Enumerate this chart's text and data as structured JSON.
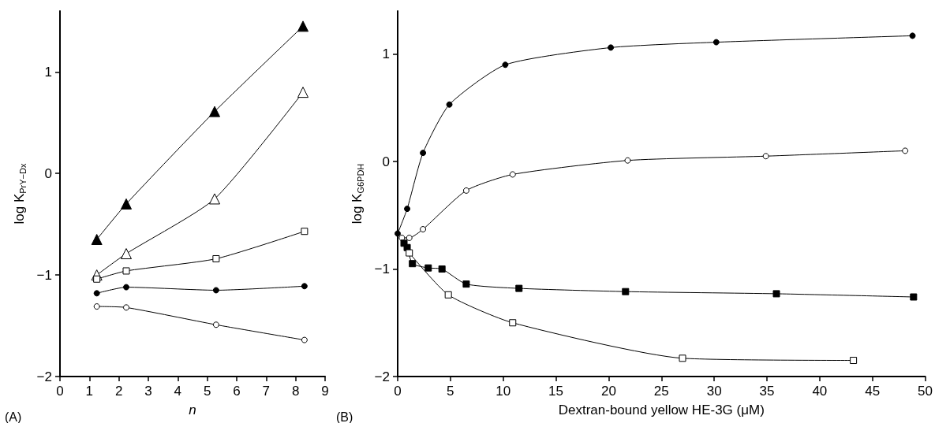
{
  "chart_data": [
    {
      "type": "line",
      "xlabel": "n",
      "ylabel": "log K$_{PrY−Dx}$",
      "annotations": [
        "(A)"
      ],
      "xlim": [
        0,
        9
      ],
      "xticks": [
        0,
        1,
        2,
        3,
        4,
        5,
        6,
        7,
        8,
        9
      ],
      "ylim": [
        -2,
        1.6
      ],
      "yticks": [
        -2,
        -1,
        0,
        1
      ],
      "line_style": "solid",
      "series": [
        {
          "color": "#000000",
          "marker": "triangle",
          "x": [
            1.25,
            2.25,
            5.25,
            8.25
          ],
          "values": [
            -0.65,
            -0.3,
            0.61,
            1.45
          ]
        },
        {
          "color": "#ffffff",
          "marker": "triangle",
          "x": [
            1.25,
            2.25,
            5.25,
            8.25
          ],
          "values": [
            -1.0,
            -0.79,
            -0.25,
            0.8
          ]
        },
        {
          "color": "#ffffff",
          "marker": "square",
          "x": [
            1.25,
            2.25,
            5.3,
            8.3
          ],
          "values": [
            -1.04,
            -0.96,
            -0.84,
            -0.57
          ]
        },
        {
          "color": "#000000",
          "marker": "circle",
          "x": [
            1.25,
            2.25,
            5.3,
            8.3
          ],
          "values": [
            -1.18,
            -1.12,
            -1.15,
            -1.11
          ]
        },
        {
          "color": "#ffffff",
          "marker": "circle",
          "x": [
            1.25,
            2.25,
            5.3,
            8.3
          ],
          "values": [
            -1.31,
            -1.32,
            -1.49,
            -1.64
          ]
        }
      ]
    },
    {
      "type": "line",
      "xlabel": "Dextran-bound yellow HE-3G (μM)",
      "ylabel": "log K$_{G6PDH}$",
      "annotations": [
        "(B)"
      ],
      "xlim": [
        0,
        50
      ],
      "xticks": [
        0,
        5,
        10,
        15,
        20,
        25,
        30,
        35,
        40,
        45,
        50
      ],
      "ylim": [
        -2,
        1.4
      ],
      "yticks": [
        -2,
        -1,
        0,
        1
      ],
      "line_style": "solid",
      "series": [
        {
          "color": "#000000",
          "marker": "circle",
          "x": [
            0,
            0.9,
            2.4,
            4.9,
            10.2,
            20.2,
            30.2,
            48.8
          ],
          "values": [
            -0.67,
            -0.44,
            0.08,
            0.53,
            0.9,
            1.06,
            1.11,
            1.17
          ]
        },
        {
          "color": "#ffffff",
          "marker": "circle",
          "x": [
            0.4,
            1.1,
            2.4,
            6.5,
            10.9,
            21.8,
            34.9,
            48.1
          ],
          "values": [
            -0.71,
            -0.71,
            -0.63,
            -0.27,
            -0.12,
            0.01,
            0.05,
            0.1
          ]
        },
        {
          "color": "#000000",
          "marker": "square",
          "x": [
            0.6,
            0.9,
            1.4,
            2.9,
            4.2,
            6.5,
            11.5,
            21.6,
            35.9,
            48.9
          ],
          "values": [
            -0.76,
            -0.8,
            -0.95,
            -0.99,
            -1.0,
            -1.14,
            -1.18,
            -1.21,
            -1.23,
            -1.26
          ]
        },
        {
          "color": "#ffffff",
          "marker": "square",
          "x": [
            1.1,
            4.8,
            10.9,
            27.0,
            43.2
          ],
          "values": [
            -0.85,
            -1.24,
            -1.5,
            -1.83,
            -1.85
          ]
        }
      ]
    }
  ]
}
